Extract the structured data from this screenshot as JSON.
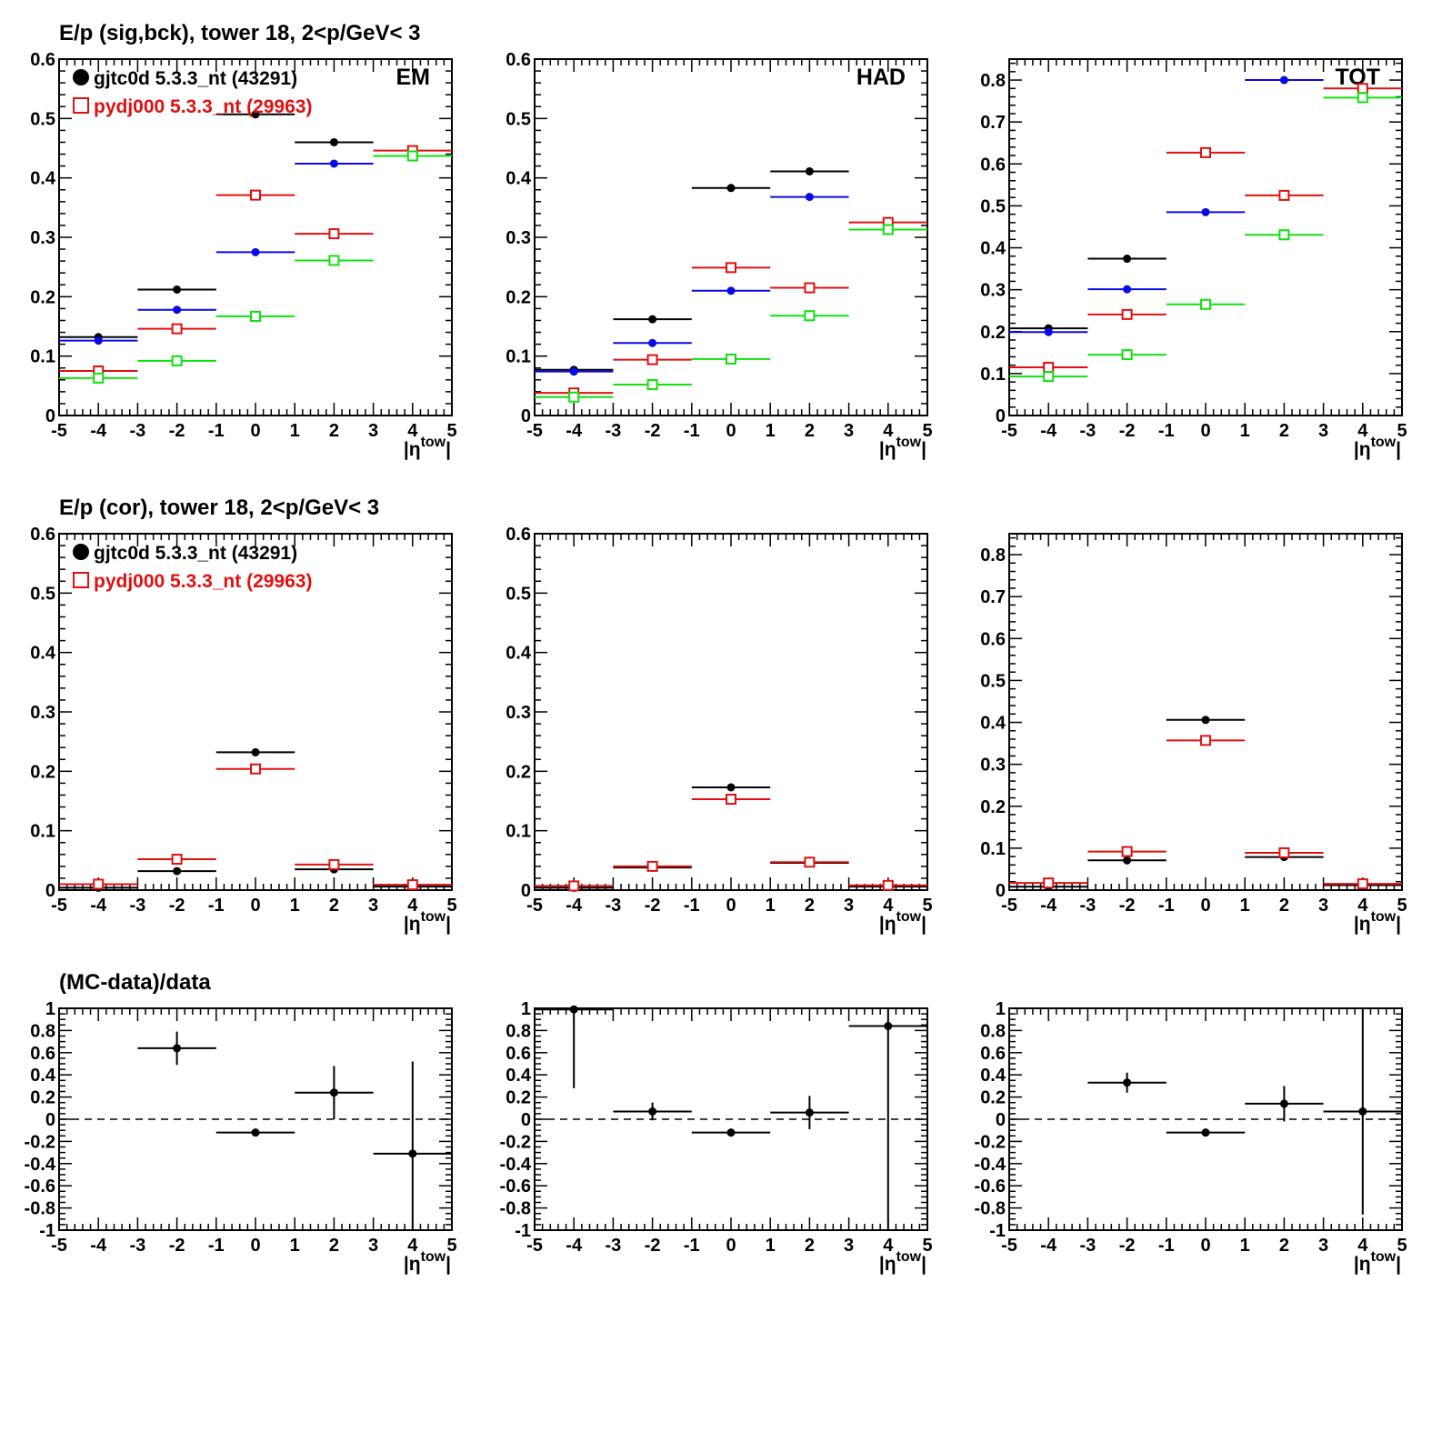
{
  "colors": {
    "gjtc0d": "#000000",
    "pydj000": "#e01010",
    "blue": "#0a0ae6",
    "green": "#10e010",
    "frame": "#000000"
  },
  "rows": [
    {
      "title": "E/p (sig,bck), tower 18,  2<p/GeV< 3"
    },
    {
      "title": "E/p (cor), tower 18,  2<p/GeV< 3"
    },
    {
      "title": "(MC-data)/data"
    }
  ],
  "legend": [
    {
      "label": "gjtc0d 5.3.3_nt (43291)",
      "marker": "filled-circle",
      "color": "#000000"
    },
    {
      "label": "pydj000 5.3.3_nt (29963)",
      "marker": "open-square",
      "color": "#e01010"
    }
  ],
  "chart_data": [
    {
      "type": "scatter",
      "panel": "row1-EM",
      "corner_label": "EM",
      "xlabel": "|η^tow|",
      "xlim": [
        -5,
        5
      ],
      "ylim": [
        0,
        0.6
      ],
      "x": [
        -4,
        -2,
        0,
        2,
        4
      ],
      "series": [
        {
          "name": "gjtc0d 5.3.3_nt (43291)",
          "color": "#000000",
          "marker": "filled-circle",
          "values": [
            0.132,
            0.212,
            0.507,
            0.46,
            null
          ]
        },
        {
          "color": "#0a0ae6",
          "marker": "filled-circle",
          "values": [
            0.126,
            0.178,
            0.275,
            0.424,
            null
          ]
        },
        {
          "name": "pydj000 5.3.3_nt (29963)",
          "color": "#e01010",
          "marker": "open-square",
          "values": [
            0.075,
            0.146,
            0.371,
            0.306,
            0.446
          ]
        },
        {
          "color": "#10e010",
          "marker": "open-square",
          "values": [
            0.063,
            0.092,
            0.167,
            0.261,
            0.437
          ]
        }
      ]
    },
    {
      "type": "scatter",
      "panel": "row1-HAD",
      "corner_label": "HAD",
      "xlabel": "|η^tow|",
      "xlim": [
        -5,
        5
      ],
      "ylim": [
        0,
        0.6
      ],
      "x": [
        -4,
        -2,
        0,
        2,
        4
      ],
      "series": [
        {
          "color": "#000000",
          "marker": "filled-circle",
          "values": [
            0.077,
            0.162,
            0.383,
            0.411,
            null
          ]
        },
        {
          "color": "#0a0ae6",
          "marker": "filled-circle",
          "values": [
            0.074,
            0.122,
            0.21,
            0.368,
            null
          ]
        },
        {
          "color": "#e01010",
          "marker": "open-square",
          "values": [
            0.038,
            0.094,
            0.249,
            0.215,
            0.325
          ]
        },
        {
          "color": "#10e010",
          "marker": "open-square",
          "values": [
            0.031,
            0.052,
            0.095,
            0.168,
            0.313
          ]
        }
      ]
    },
    {
      "type": "scatter",
      "panel": "row1-TOT",
      "corner_label": "TOT",
      "xlabel": "|η^tow|",
      "xlim": [
        -5,
        5
      ],
      "ylim": [
        0,
        0.85
      ],
      "x": [
        -4,
        -2,
        0,
        2,
        4
      ],
      "series": [
        {
          "color": "#000000",
          "marker": "filled-circle",
          "values": [
            0.208,
            0.374,
            null,
            null,
            null
          ]
        },
        {
          "color": "#0a0ae6",
          "marker": "filled-circle",
          "values": [
            0.199,
            0.301,
            0.485,
            0.8,
            null
          ]
        },
        {
          "color": "#e01010",
          "marker": "open-square",
          "values": [
            0.115,
            0.241,
            0.627,
            0.525,
            0.78
          ]
        },
        {
          "color": "#10e010",
          "marker": "open-square",
          "values": [
            0.093,
            0.145,
            0.265,
            0.431,
            0.758
          ]
        }
      ]
    },
    {
      "type": "scatter",
      "panel": "row2-EM",
      "xlabel": "|η^tow|",
      "xlim": [
        -5,
        5
      ],
      "ylim": [
        0,
        0.6
      ],
      "x": [
        -4,
        -2,
        0,
        2,
        4
      ],
      "series": [
        {
          "name": "gjtc0d 5.3.3_nt (43291)",
          "color": "#000000",
          "marker": "filled-circle",
          "values": [
            0.004,
            0.032,
            0.232,
            0.035,
            0.006
          ]
        },
        {
          "name": "pydj000 5.3.3_nt (29963)",
          "color": "#e01010",
          "marker": "open-square",
          "values": [
            0.01,
            0.052,
            0.204,
            0.043,
            0.009
          ]
        }
      ]
    },
    {
      "type": "scatter",
      "panel": "row2-HAD",
      "xlabel": "|η^tow|",
      "xlim": [
        -5,
        5
      ],
      "ylim": [
        0,
        0.6
      ],
      "x": [
        -4,
        -2,
        0,
        2,
        4
      ],
      "series": [
        {
          "color": "#000000",
          "marker": "filled-circle",
          "values": [
            0.004,
            0.038,
            0.173,
            0.046,
            0.006
          ]
        },
        {
          "color": "#e01010",
          "marker": "open-square",
          "values": [
            0.007,
            0.04,
            0.153,
            0.047,
            0.008
          ]
        }
      ]
    },
    {
      "type": "scatter",
      "panel": "row2-TOT",
      "xlabel": "|η^tow|",
      "xlim": [
        -5,
        5
      ],
      "ylim": [
        0,
        0.85
      ],
      "x": [
        -4,
        -2,
        0,
        2,
        4
      ],
      "series": [
        {
          "color": "#000000",
          "marker": "filled-circle",
          "values": [
            0.008,
            0.071,
            0.406,
            0.079,
            0.012
          ]
        },
        {
          "color": "#e01010",
          "marker": "open-square",
          "values": [
            0.017,
            0.092,
            0.357,
            0.089,
            0.015
          ]
        }
      ]
    },
    {
      "type": "scatter",
      "panel": "row3-EM",
      "xlabel": "|η^tow|",
      "xlim": [
        -5,
        5
      ],
      "ylim": [
        -1,
        1
      ],
      "reference_line": 0,
      "x": [
        -2,
        0,
        2,
        4
      ],
      "series": [
        {
          "color": "#000000",
          "marker": "filled-circle",
          "values": [
            0.64,
            -0.12,
            0.24,
            -0.31
          ],
          "err": [
            0.15,
            0.01,
            0.24,
            0.83
          ]
        }
      ]
    },
    {
      "type": "scatter",
      "panel": "row3-HAD",
      "xlabel": "|η^tow|",
      "xlim": [
        -5,
        5
      ],
      "ylim": [
        -1,
        1
      ],
      "reference_line": 0,
      "x": [
        -4,
        -2,
        0,
        2,
        4
      ],
      "series": [
        {
          "color": "#000000",
          "marker": "filled-circle",
          "values": [
            0.99,
            0.07,
            -0.12,
            0.06,
            0.84
          ],
          "err": [
            0.71,
            0.08,
            0.01,
            0.15,
            1.84
          ]
        }
      ]
    },
    {
      "type": "scatter",
      "panel": "row3-TOT",
      "xlabel": "|η^tow|",
      "xlim": [
        -5,
        5
      ],
      "ylim": [
        -1,
        1
      ],
      "reference_line": 0,
      "x": [
        -2,
        0,
        2,
        4
      ],
      "series": [
        {
          "color": "#000000",
          "marker": "filled-circle",
          "values": [
            0.33,
            -0.12,
            0.14,
            0.07
          ],
          "err": [
            0.09,
            0.01,
            0.16,
            0.93
          ]
        }
      ]
    }
  ]
}
